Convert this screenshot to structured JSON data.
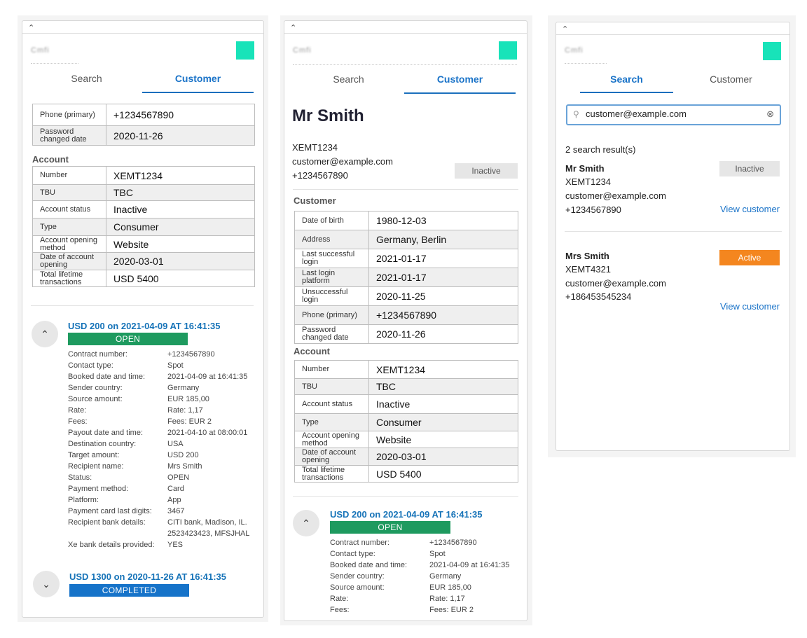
{
  "colors": {
    "accent": "#1a73c8",
    "teal": "#18e3b9",
    "open": "#1e9a5f",
    "completed": "#1673c9",
    "active": "#f4861f",
    "inactive": "#e6e6e6"
  },
  "icons": {
    "collapse": "chevron-up-icon",
    "expand": "chevron-down-icon",
    "search": "search-icon",
    "clear": "clear-icon"
  },
  "common": {
    "collapse_glyph": "⌃",
    "logo_text": "Cmfi",
    "tab_search": "Search",
    "tab_customer": "Customer",
    "circle_up": "⌃",
    "circle_down": "⌄"
  },
  "panel1": {
    "contact_rows": [
      {
        "k": "Phone (primary)",
        "v": "+1234567890"
      },
      {
        "k": "Password changed date",
        "v": "2020-11-26"
      }
    ],
    "account_heading": "Account",
    "account_rows": [
      {
        "k": "Number",
        "v": "XEMT1234"
      },
      {
        "k": "TBU",
        "v": "TBC"
      },
      {
        "k": "Account status",
        "v": "Inactive"
      },
      {
        "k": "Type",
        "v": "Consumer"
      },
      {
        "k": "Account opening method",
        "v": "Website"
      },
      {
        "k": "Date of account opening",
        "v": "2020-03-01"
      },
      {
        "k": "Total lifetime transactions",
        "v": "USD 5400"
      }
    ],
    "tx1_title": "USD 200 on 2021-04-09 AT 16:41:35",
    "tx1_status": "OPEN",
    "tx1_details": [
      {
        "k": "Contract number:",
        "v": "+1234567890"
      },
      {
        "k": "Contact type:",
        "v": "Spot"
      },
      {
        "k": "Booked date and time:",
        "v": "2021-04-09 at 16:41:35"
      },
      {
        "k": "Sender country:",
        "v": "Germany"
      },
      {
        "k": "Source amount:",
        "v": "EUR 185,00"
      },
      {
        "k": "Rate:",
        "v": "Rate: 1,17"
      },
      {
        "k": "Fees:",
        "v": "Fees: EUR 2"
      },
      {
        "k": "Payout date and time:",
        "v": "2021-04-10 at 08:00:01"
      },
      {
        "k": "Destination country:",
        "v": "USA"
      },
      {
        "k": "Target amount:",
        "v": "USD 200"
      },
      {
        "k": "Recipient name:",
        "v": "Mrs Smith"
      },
      {
        "k": "Status:",
        "v": "OPEN"
      },
      {
        "k": "Payment method:",
        "v": "Card"
      },
      {
        "k": "Platform:",
        "v": "App"
      },
      {
        "k": "Payment card last digits:",
        "v": "3467"
      },
      {
        "k": "Recipient bank details:",
        "v": "CITI bank, Madison, IL. 2523423423, MFSJHAL"
      },
      {
        "k": "Xe bank details provided:",
        "v": "YES"
      }
    ],
    "tx2_title": "USD 1300 on 2020-11-26 AT 16:41:35",
    "tx2_status": "COMPLETED"
  },
  "panel2": {
    "name": "Mr Smith",
    "account_number": "XEMT1234",
    "email": "customer@example.com",
    "phone": "+1234567890",
    "status": "Inactive",
    "customer_heading": "Customer",
    "customer_rows": [
      {
        "k": "Date of birth",
        "v": "1980-12-03"
      },
      {
        "k": "Address",
        "v": "Germany, Berlin"
      },
      {
        "k": "Last successful login",
        "v": "2021-01-17"
      },
      {
        "k": "Last login platform",
        "v": "2021-01-17"
      },
      {
        "k": "Unsuccessful login",
        "v": "2020-11-25"
      },
      {
        "k": "Phone (primary)",
        "v": "+1234567890"
      },
      {
        "k": "Password changed date",
        "v": "2020-11-26"
      }
    ],
    "account_heading": "Account",
    "account_rows": [
      {
        "k": "Number",
        "v": "XEMT1234"
      },
      {
        "k": "TBU",
        "v": "TBC"
      },
      {
        "k": "Account status",
        "v": "Inactive"
      },
      {
        "k": "Type",
        "v": "Consumer"
      },
      {
        "k": "Account opening method",
        "v": "Website"
      },
      {
        "k": "Date of account opening",
        "v": "2020-03-01"
      },
      {
        "k": "Total lifetime transactions",
        "v": "USD 5400"
      }
    ],
    "tx1_title": "USD 200 on 2021-04-09 AT 16:41:35",
    "tx1_status": "OPEN",
    "tx1_details": [
      {
        "k": "Contract number:",
        "v": "+1234567890"
      },
      {
        "k": "Contact type:",
        "v": "Spot"
      },
      {
        "k": "Booked date and time:",
        "v": "2021-04-09 at 16:41:35"
      },
      {
        "k": "Sender country:",
        "v": "Germany"
      },
      {
        "k": "Source amount:",
        "v": "EUR 185,00"
      },
      {
        "k": "Rate:",
        "v": "Rate: 1,17"
      },
      {
        "k": "Fees:",
        "v": "Fees: EUR 2"
      }
    ]
  },
  "panel3": {
    "search_value": "customer@example.com",
    "results_count": "2 search result(s)",
    "results": [
      {
        "name": "Mr Smith",
        "account": "XEMT1234",
        "email": "customer@example.com",
        "phone": "+1234567890",
        "status": "Inactive",
        "link": "View customer"
      },
      {
        "name": "Mrs Smith",
        "account": "XEMT4321",
        "email": "customer@example.com",
        "phone": "+186453545234",
        "status": "Active",
        "link": "View customer"
      }
    ]
  }
}
